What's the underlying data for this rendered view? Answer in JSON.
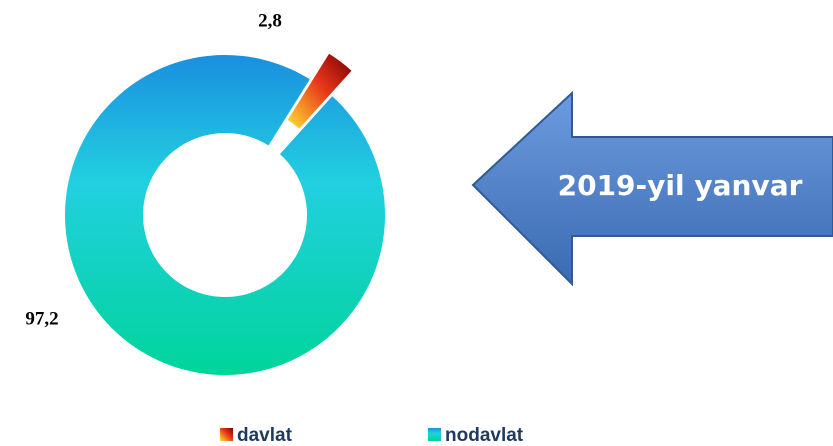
{
  "chart_data": {
    "type": "pie",
    "categories": [
      "davlat",
      "nodavlat"
    ],
    "values": [
      2.8,
      97.2
    ],
    "value_labels": [
      "2,8",
      "97,2"
    ],
    "colors": [
      "#e8361a",
      "#22b8dc"
    ],
    "annotation": "2019-yil yanvar",
    "legend": "bottom"
  }
}
